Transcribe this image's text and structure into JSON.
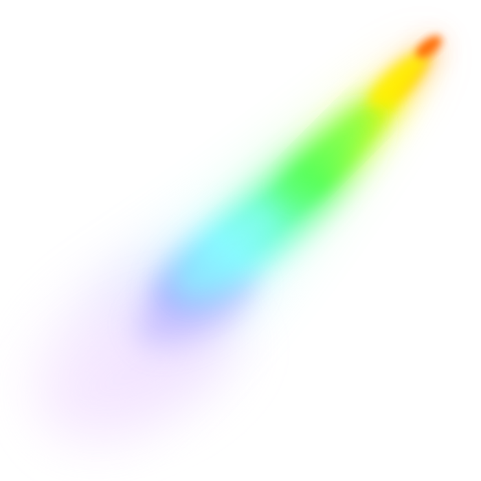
{
  "scene": {
    "background_color": "#ffffff",
    "subject": "rainbow-light-streak",
    "spectrum_colors": [
      "#ff7a00",
      "#ffe600",
      "#b7ff3c",
      "#5dff5d",
      "#7dfff0",
      "#8fd6ff",
      "#a9a6ff",
      "#e7d0ff",
      "#ffe8ff"
    ]
  }
}
